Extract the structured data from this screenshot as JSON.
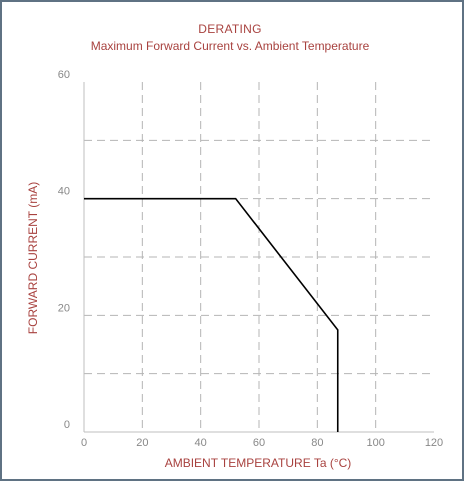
{
  "chart_data": {
    "type": "line",
    "title": "DERATING",
    "subtitle": "Maximum Forward Current vs. Ambient Temperature",
    "xlabel": "AMBIENT TEMPERATURE Ta (°C)",
    "ylabel": "FORWARD CURRENT (mA)",
    "xlim": [
      0,
      120
    ],
    "ylim": [
      0,
      60
    ],
    "x_ticks": [
      0,
      20,
      40,
      60,
      80,
      100,
      120
    ],
    "y_ticks": [
      0,
      20,
      40,
      60
    ],
    "x_grid": [
      20,
      40,
      60,
      80,
      100
    ],
    "y_grid": [
      10,
      20,
      30,
      40,
      50
    ],
    "grid": true,
    "series": [
      {
        "color": "#000000",
        "x": [
          0,
          52,
          87,
          87,
          87
        ],
        "y": [
          40,
          40,
          17.5,
          17.5,
          0
        ]
      }
    ],
    "colors": {
      "text": "#a8423f",
      "axis": "#bfbfbf",
      "grid": "#b5b5b5",
      "tick": "#888888"
    }
  }
}
